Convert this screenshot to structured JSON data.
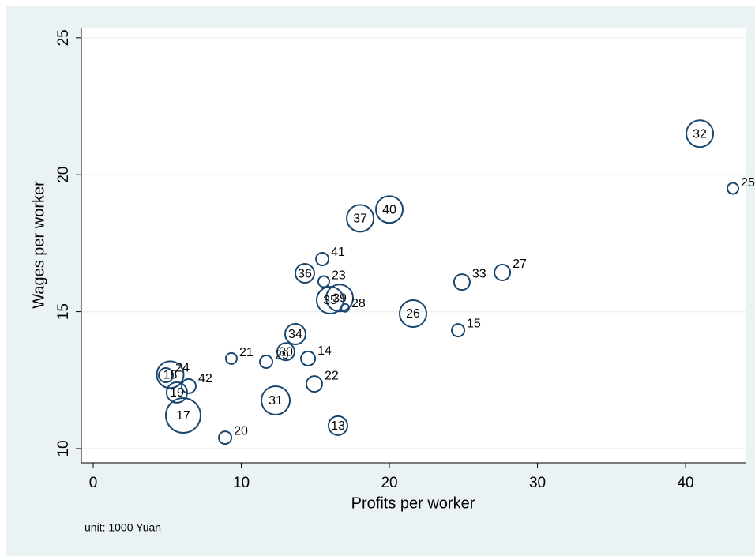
{
  "chart_data": {
    "type": "scatter",
    "x_label": "Profits per worker",
    "y_label": "Wages per worker",
    "note": "unit: 1000 Yuan",
    "xlim": [
      -0.8,
      44.05
    ],
    "ylim": [
      9.48,
      25.37
    ],
    "xticks": [
      0,
      10,
      20,
      30,
      40
    ],
    "yticks": [
      10,
      15,
      20,
      25
    ],
    "grid": true,
    "series": [
      {
        "color": "#1a476f",
        "labels": [
          "32",
          "25",
          "40",
          "37",
          "41",
          "36",
          "23",
          "33",
          "27",
          "39",
          "35",
          "28",
          "26",
          "15",
          "34",
          "30",
          "29",
          "21",
          "14",
          "24",
          "18",
          "42",
          "19",
          "22",
          "31",
          "17",
          "13",
          "20"
        ],
        "x": [
          40.96,
          43.2,
          20.0,
          18.03,
          15.47,
          14.29,
          15.57,
          24.9,
          27.63,
          16.64,
          16.0,
          17.01,
          21.6,
          24.64,
          13.65,
          13.01,
          11.68,
          9.33,
          14.51,
          4.91,
          5.2,
          6.45,
          5.65,
          14.93,
          12.32,
          6.08,
          16.53,
          8.91
        ],
        "values": [
          21.5,
          19.5,
          18.73,
          18.41,
          16.92,
          16.4,
          16.1,
          16.08,
          16.43,
          15.5,
          15.42,
          15.14,
          14.93,
          14.32,
          14.18,
          13.54,
          13.17,
          13.29,
          13.29,
          12.68,
          12.7,
          12.28,
          12.05,
          12.36,
          11.76,
          11.21,
          10.84,
          10.4
        ],
        "sizes": [
          17,
          7,
          17,
          17,
          8,
          12,
          7,
          10,
          10,
          17,
          17,
          5,
          17,
          8,
          13,
          11,
          8,
          7,
          9,
          9,
          17,
          9,
          13,
          10,
          18,
          22,
          12,
          8
        ]
      }
    ]
  }
}
